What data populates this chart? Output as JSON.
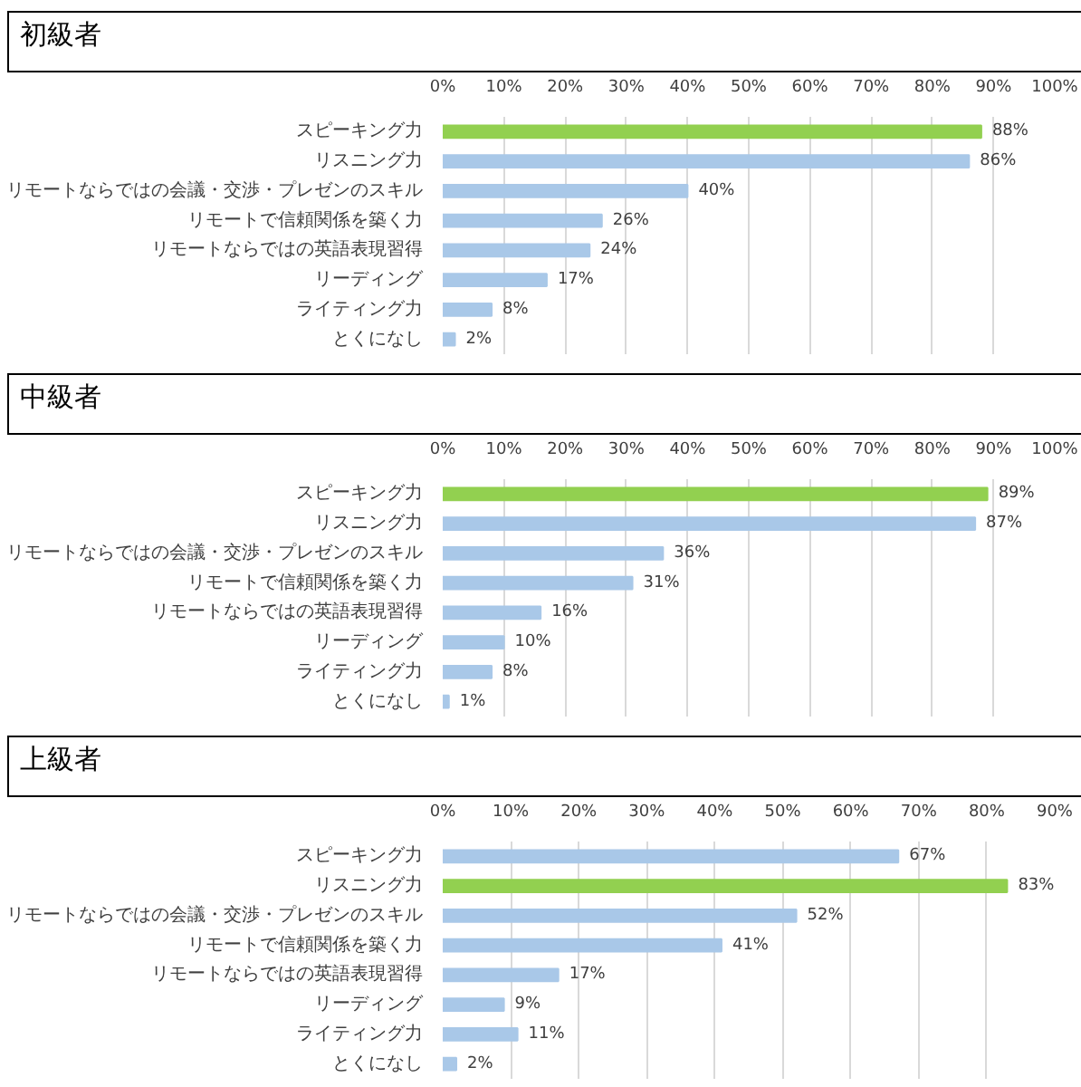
{
  "chart_data": [
    {
      "type": "bar",
      "orientation": "horizontal",
      "title": "初級者",
      "categories": [
        "スピーキング力",
        "リスニング力",
        "リモートならではの会議・交渉・プレゼンのスキル",
        "リモートで信頼関係を築く力",
        "リモートならではの英語表現習得",
        "リーディング",
        "ライティング力",
        "とくになし"
      ],
      "values": [
        88,
        86,
        40,
        26,
        24,
        17,
        8,
        2
      ],
      "value_labels": [
        "88%",
        "86%",
        "40%",
        "26%",
        "24%",
        "17%",
        "8%",
        "2%"
      ],
      "colors": [
        "#92d050",
        "#a9c8e8",
        "#a9c8e8",
        "#a9c8e8",
        "#a9c8e8",
        "#a9c8e8",
        "#a9c8e8",
        "#a9c8e8"
      ],
      "xlim": [
        0,
        100
      ],
      "xticks": [
        {
          "value": 0,
          "label": "0%"
        },
        {
          "value": 10,
          "label": "10%"
        },
        {
          "value": 20,
          "label": "20%"
        },
        {
          "value": 30,
          "label": "30%"
        },
        {
          "value": 40,
          "label": "40%"
        },
        {
          "value": 50,
          "label": "50%"
        },
        {
          "value": 60,
          "label": "60%"
        },
        {
          "value": 70,
          "label": "70%"
        },
        {
          "value": 80,
          "label": "80%"
        },
        {
          "value": 90,
          "label": "90%"
        },
        {
          "value": 100,
          "label": "100%"
        }
      ],
      "grid": "x"
    },
    {
      "type": "bar",
      "orientation": "horizontal",
      "title": "中級者",
      "categories": [
        "スピーキング力",
        "リスニング力",
        "リモートならではの会議・交渉・プレゼンのスキル",
        "リモートで信頼関係を築く力",
        "リモートならではの英語表現習得",
        "リーディング",
        "ライティング力",
        "とくになし"
      ],
      "values": [
        89,
        87,
        36,
        31,
        16,
        10,
        8,
        1
      ],
      "value_labels": [
        "89%",
        "87%",
        "36%",
        "31%",
        "16%",
        "10%",
        "8%",
        "1%"
      ],
      "colors": [
        "#92d050",
        "#a9c8e8",
        "#a9c8e8",
        "#a9c8e8",
        "#a9c8e8",
        "#a9c8e8",
        "#a9c8e8",
        "#a9c8e8"
      ],
      "xlim": [
        0,
        100
      ],
      "xticks": [
        {
          "value": 0,
          "label": "0%"
        },
        {
          "value": 10,
          "label": "10%"
        },
        {
          "value": 20,
          "label": "20%"
        },
        {
          "value": 30,
          "label": "30%"
        },
        {
          "value": 40,
          "label": "40%"
        },
        {
          "value": 50,
          "label": "50%"
        },
        {
          "value": 60,
          "label": "60%"
        },
        {
          "value": 70,
          "label": "70%"
        },
        {
          "value": 80,
          "label": "80%"
        },
        {
          "value": 90,
          "label": "90%"
        },
        {
          "value": 100,
          "label": "100%"
        }
      ],
      "grid": "x"
    },
    {
      "type": "bar",
      "orientation": "horizontal",
      "title": "上級者",
      "categories": [
        "スピーキング力",
        "リスニング力",
        "リモートならではの会議・交渉・プレゼンのスキル",
        "リモートで信頼関係を築く力",
        "リモートならではの英語表現習得",
        "リーディング",
        "ライティング力",
        "とくになし"
      ],
      "values": [
        67,
        83,
        52,
        41,
        17,
        9,
        11,
        2
      ],
      "value_labels": [
        "67%",
        "83%",
        "52%",
        "41%",
        "17%",
        "9%",
        "11%",
        "2%"
      ],
      "colors": [
        "#a9c8e8",
        "#92d050",
        "#a9c8e8",
        "#a9c8e8",
        "#a9c8e8",
        "#a9c8e8",
        "#a9c8e8",
        "#a9c8e8"
      ],
      "xlim": [
        0,
        90
      ],
      "xticks": [
        {
          "value": 0,
          "label": "0%"
        },
        {
          "value": 10,
          "label": "10%"
        },
        {
          "value": 20,
          "label": "20%"
        },
        {
          "value": 30,
          "label": "30%"
        },
        {
          "value": 40,
          "label": "40%"
        },
        {
          "value": 50,
          "label": "50%"
        },
        {
          "value": 60,
          "label": "60%"
        },
        {
          "value": 70,
          "label": "70%"
        },
        {
          "value": 80,
          "label": "80%"
        },
        {
          "value": 90,
          "label": "90%"
        }
      ],
      "grid": "x"
    }
  ]
}
